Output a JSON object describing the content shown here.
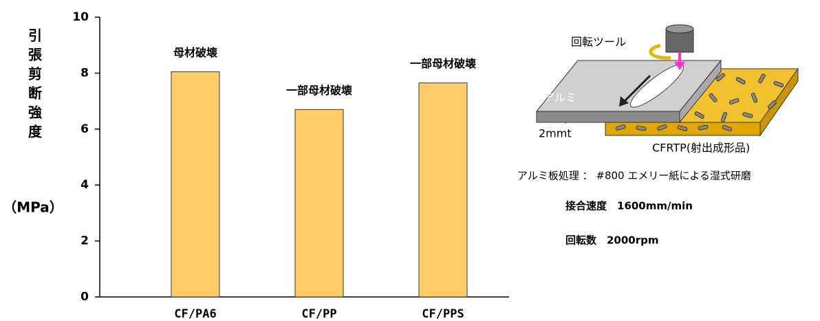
{
  "chart_data": {
    "type": "bar",
    "y_label": "引張剪断強度",
    "y_unit": "（MPa）",
    "categories": [
      "CF/PA6",
      "CF/PP",
      "CF/PPS"
    ],
    "values": [
      8.05,
      6.7,
      7.65
    ],
    "bar_annotations": [
      "母材破壊",
      "一部母材破壊",
      "一部母材破壊"
    ],
    "color": "#ffcc66",
    "ylim": [
      0,
      10
    ],
    "yticks": [
      0,
      2,
      4,
      6,
      8,
      10
    ]
  },
  "diagram": {
    "tool": "回転ツール",
    "aluminum": "アルミ",
    "thickness": "2mmt",
    "cfrtp": "CFRTP(射出成形品)",
    "treatment": "アルミ板処理 ： #800 エメリー紙による湿式研磨",
    "speed": "接合速度　1600mm/min",
    "rotation": "回転数　2000rpm"
  }
}
